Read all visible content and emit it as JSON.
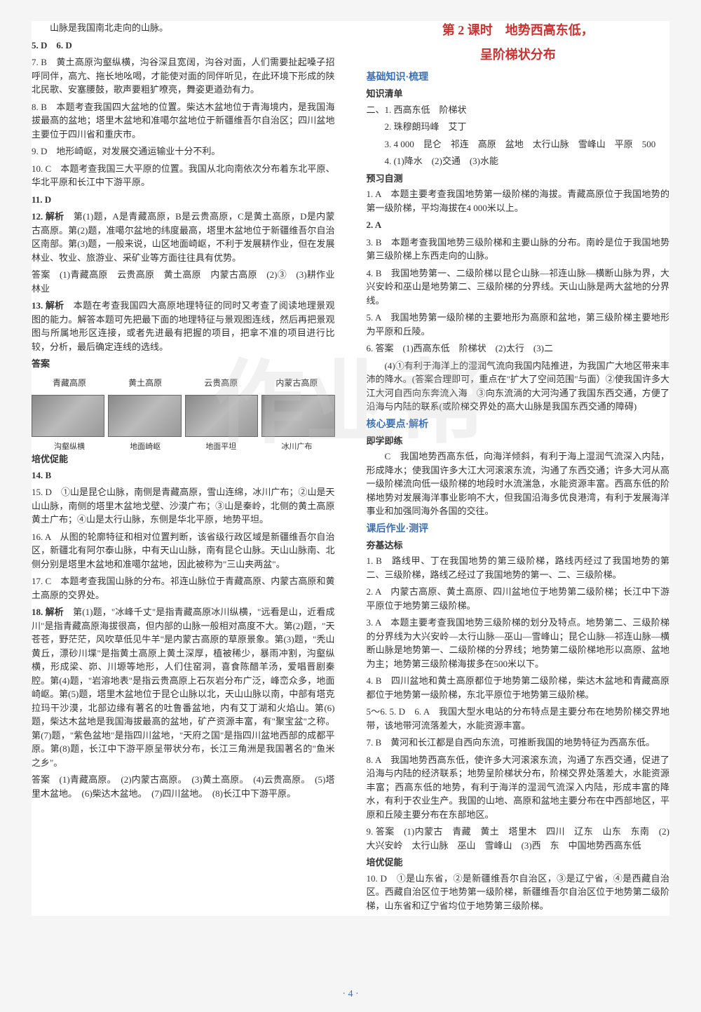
{
  "watermark": "作业帮",
  "pageNumber": "· 4 ·",
  "left": {
    "topLine": "山脉是我国南北走向的山脉。",
    "a5": "5. D",
    "a6": "6. D",
    "a7": "7. B　黄土高原沟壑纵横，沟谷深且宽阔，沟谷对面，人们需要扯起嗓子招呼同伴，高亢、拖长地吆喝，才能使对面的同伴听见，在此环境下形成的陕北民歌、安塞腰鼓，歌声要粗犷嘹亮，舞姿更遒劲有力。",
    "a8": "8. B　本题考查我国四大盆地的位置。柴达木盆地位于青海境内，是我国海拔最高的盆地；塔里木盆地和准噶尔盆地位于新疆维吾尔自治区；四川盆地主要位于四川省和重庆市。",
    "a9": "9. D　地形崎岖，对发展交通运输业十分不利。",
    "a10": "10. C　本题考查我国三大平原的位置。我国从北向南依次分布着东北平原、华北平原和长江中下游平原。",
    "a11": "11. D",
    "a12label": "12. 解析",
    "a12": "第(1)题，A是青藏高原，B是云贵高原，C是黄土高原，D是内蒙古高原。第(2)题，准噶尔盆地的纬度最高，塔里木盆地位于新疆维吾尔自治区南部。第(3)题，一般来说，山区地面崎岖，不利于发展耕作业，但在发展林业、牧业、旅游业、采矿业等方面往往具有优势。",
    "a12ans": "答案　(1)青藏高原　云贵高原　黄土高原　内蒙古高原　(2)③　(3)耕作业　林业",
    "a13label": "13. 解析",
    "a13": "本题在考查我国四大高原地理特征的同时又考查了阅读地理景观图的能力。解答本题可先把最下面的地理特征与景观图连线，然后再把景观图与所属地形区连接，或者先进最有把握的项目，把拿不准的项目进行比较，分析，最后确定连线的选线。",
    "a13ans": "答案",
    "tableHeaders": [
      "青藏高原",
      "黄土高原",
      "云贵高原",
      "内蒙古高原"
    ],
    "tableCaptions": [
      "沟壑纵横",
      "地面崎岖",
      "地面平坦",
      "冰川广布"
    ],
    "peiyou": "培优促能",
    "a14": "14. B",
    "a15": "15. D　①山是昆仑山脉，南侧是青藏高原，雪山连绵，冰川广布；②山是天山山脉，南侧的塔里木盆地戈壁、沙漠广布；③山是秦岭，北侧的黄土高原黄土广布；④山是太行山脉，东侧是华北平原，地势平坦。",
    "a16": "16. A　从图的轮廓特征和相对位置判断，该省级行政区域是新疆维吾尔自治区，新疆北有阿尔泰山脉，中有天山山脉，南有昆仑山脉。天山山脉南、北侧分别是塔里木盆地和准噶尔盆地，因此被称为\"三山夹两盆\"。",
    "a17": "17. C　本题考查我国山脉的分布。祁连山脉位于青藏高原、内蒙古高原和黄土高原的交界处。",
    "a18label": "18. 解析",
    "a18": "第(1)题，\"冰峰千丈\"是指青藏高原冰川纵横，\"远看是山，近看成川\"是指青藏高原海拔很高，但内部的山脉一般相对高度不大。第(2)题，\"天苍苍，野茫茫，风吹草低见牛羊\"是内蒙古高原的草原景象。第(3)题，\"秃山黄丘，漂砂川堞\"是指黄土高原上黄土深厚，植被稀少，暴雨冲割，沟壑纵横，形成梁、峁、川塬等地形，人们住窑洞，喜食陈醋羊汤，爱唱晋剧秦腔。第(4)题，\"岩溶地表\"是指云贵高原上石灰岩分布广泛，峰峦众多，地面崎岖。第(5)题，塔里木盆地位于昆仑山脉以北，天山山脉以南，中部有塔克拉玛干沙漠，北部边缘有著名的吐鲁番盆地，内有艾丁湖和火焰山。第(6)题，柴达木盆地是我国海拔最高的盆地，矿产资源丰富，有\"聚宝盆\"之称。第(7)题，\"紫色盆地\"是指四川盆地，\"天府之国\"是指四川盆地西部的成都平原。第(8)题，长江中下游平原呈带状分布，长江三角洲是我国著名的\"鱼米之乡\"。",
    "a18ans": "答案　(1)青藏高原。　(2)内蒙古高原。　(3)黄土高原。　(4)云贵高原。　(5)塔里木盆地。　(6)柴达木盆地。　(7)四川盆地。　(8)长江中下游平原。"
  },
  "right": {
    "title1": "第 2 课时　地势西高东低，",
    "title2": "呈阶梯状分布",
    "jichu": "基础知识·梳理",
    "zhishi": "知识清单",
    "r2_1": "二、1. 西高东低　阶梯状",
    "r2_2": "2. 珠穆朗玛峰　艾丁",
    "r2_3": "3. 4 000　昆仑　祁连　高原　盆地　太行山脉　雪峰山　平原　500",
    "r2_4": "4. (1)降水　(2)交通　(3)水能",
    "yuxi": "预习自测",
    "y1": "1. A　本题主要考查我国地势第一级阶梯的海拔。青藏高原位于我国地势的第一级阶梯，平均海拔在4 000米以上。",
    "y2": "2. A",
    "y3": "3. B　本题考查我国地势三级阶梯和主要山脉的分布。南岭是位于我国地势第三级阶梯上东西走向的山脉。",
    "y4": "4. B　我国地势第一、二级阶梯以昆仑山脉—祁连山脉—横断山脉为界，大兴安岭和巫山是地势第二、三级阶梯的分界线。天山山脉是两大盆地的分界线。",
    "y5": "5. A　我国地势第一级阶梯的主要地形为高原和盆地，第三级阶梯主要地形为平原和丘陵。",
    "y6": "6. 答案　(1)西高东低　阶梯状　(2)太行　(3)二",
    "y6b": "(4)①有利于海洋上的湿润气流向我国内陆推进，为我国广大地区带来丰沛的降水。(答案合理即可，重点在\"扩大了空间范围\"与面）②使我国许多大江大河自西向东奔流入海　③向东流淌的大河沟通了我国东西交通，方便了沿海与内陆的联系(或阶梯交界处的高大山脉是我国东西交通的障碍)",
    "hexin": "核心要点·解析",
    "jixue": "即学即练",
    "jx1": "C　我国地势西高东低，向海洋倾斜，有利于海上湿润气流深入内陆，形成降水；使我国许多大江大河滚滚东流，沟通了东西交通；许多大河从高一级阶梯流向低一级阶梯的地段时水流湍急，水能资源丰富。西高东低的阶梯地势对发展海洋事业影响不大，但我国沿海多优良港湾，有利于发展海洋事业和加强同海外各国的交往。",
    "kehou": "课后作业·测评",
    "kjibiao": "夯基达标",
    "k1": "1. B　路线甲、丁在我国地势的第三级阶梯，路线丙经过了我国地势的第二、三级阶梯，路线乙经过了我国地势的第一、二、三级阶梯。",
    "k2": "2. A　内蒙古高原、黄土高原、四川盆地位于地势第二级阶梯；长江中下游平原位于地势第三级阶梯。",
    "k3": "3. A　本题主要考查我国地势三级阶梯的划分及特点。地势第二、三级阶梯的分界线为大兴安岭—太行山脉—巫山—雪峰山；昆仑山脉—祁连山脉—横断山脉是地势第一、二级阶梯的分界线；地势第二级阶梯地形以高原、盆地为主；地势第三级阶梯海拔多在500米以下。",
    "k4": "4. B　四川盆地和黄土高原都位于地势第二级阶梯，柴达木盆地和青藏高原都位于地势第一级阶梯，东北平原位于地势第三级阶梯。",
    "k5": "5～6. 5. D　6. A　我国大型水电站的分布特点是主要分布在地势阶梯交界地带，该地带河流落差大，水能资源丰富。",
    "k7": "7. B　黄河和长江都是自西向东流，可推断我国的地势特征为西高东低。",
    "k8": "8. A　我国地势西高东低，使许多大河滚滚东流，沟通了东西交通，促进了沿海与内陆的经济联系；地势呈阶梯状分布，阶梯交界处落差大，水能资源丰富；西高东低的地势，有利于海洋的湿润气流深入内陆，形成丰富的降水，有利于农业生产。我国的山地、高原和盆地主要分布在中西部地区，平原和丘陵主要分布在东部地区。",
    "k9": "9. 答案　(1)内蒙古　青藏　黄土　塔里木　四川　辽东　山东　东南　(2)大兴安岭　太行山脉　巫山　雪峰山　(3)西　东　中国地势西高东低",
    "peiyou2": "培优促能",
    "k10": "10. D　①是山东省，②是新疆维吾尔自治区，③是辽宁省，④是西藏自治区。西藏自治区位于地势第一级阶梯，新疆维吾尔自治区位于地势第二级阶梯，山东省和辽宁省均位于地势第三级阶梯。"
  }
}
